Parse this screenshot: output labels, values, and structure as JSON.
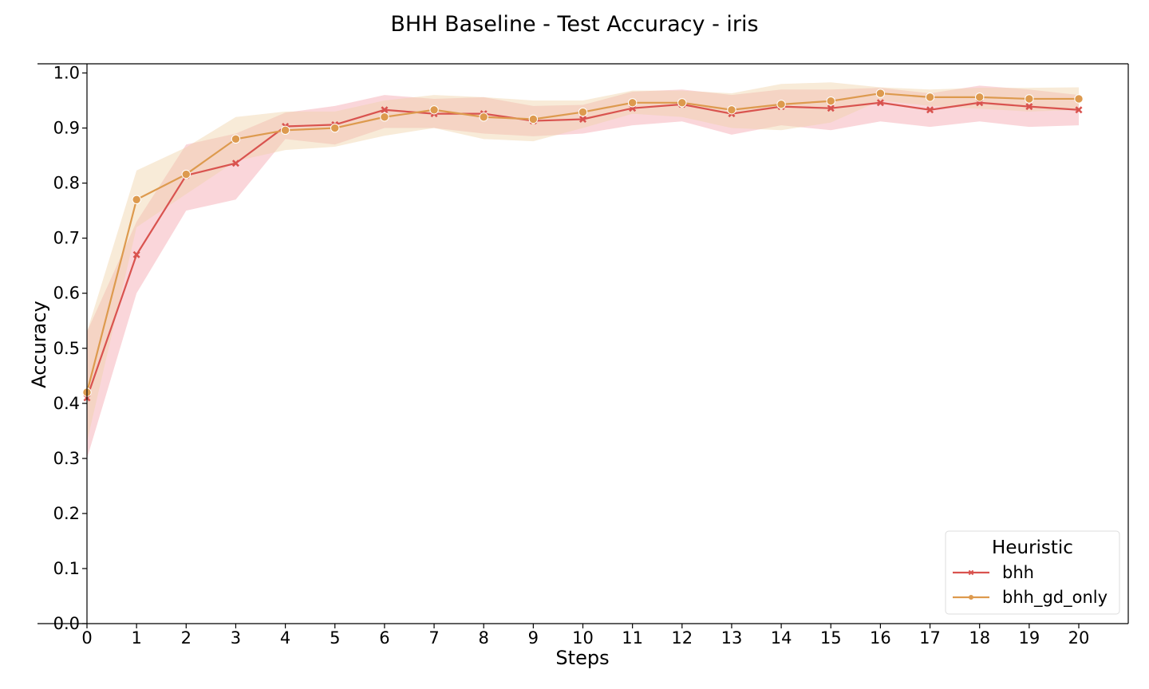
{
  "chart_data": {
    "type": "line",
    "title": "BHH Baseline - Test Accuracy - iris",
    "xlabel": "Steps",
    "ylabel": "Accuracy",
    "xlim": [
      0,
      21
    ],
    "ylim": [
      0,
      1
    ],
    "x": [
      0,
      1,
      2,
      3,
      4,
      5,
      6,
      7,
      8,
      9,
      10,
      11,
      12,
      13,
      14,
      15,
      16,
      17,
      18,
      19,
      20
    ],
    "xticks": [
      "0",
      "1",
      "2",
      "3",
      "4",
      "5",
      "6",
      "7",
      "8",
      "9",
      "10",
      "11",
      "12",
      "13",
      "14",
      "15",
      "16",
      "17",
      "18",
      "19",
      "20"
    ],
    "yticks": [
      "0.0",
      "0.1",
      "0.2",
      "0.3",
      "0.4",
      "0.5",
      "0.6",
      "0.7",
      "0.8",
      "0.9",
      "1.0"
    ],
    "grid": false,
    "legend": {
      "title": "Heuristic",
      "placement": "bottom-right"
    },
    "series": [
      {
        "name": "bhh",
        "color": "#d9534f",
        "band_color": "#f08a96",
        "marker": "x",
        "values": [
          0.41,
          0.67,
          0.814,
          0.836,
          0.903,
          0.906,
          0.933,
          0.926,
          0.926,
          0.913,
          0.916,
          0.936,
          0.943,
          0.926,
          0.939,
          0.936,
          0.946,
          0.933,
          0.946,
          0.939,
          0.933
        ],
        "lower": [
          0.3,
          0.6,
          0.75,
          0.77,
          0.88,
          0.87,
          0.9,
          0.9,
          0.89,
          0.885,
          0.89,
          0.905,
          0.912,
          0.888,
          0.905,
          0.896,
          0.912,
          0.902,
          0.912,
          0.902,
          0.905
        ],
        "upper": [
          0.53,
          0.73,
          0.87,
          0.89,
          0.928,
          0.94,
          0.96,
          0.953,
          0.956,
          0.94,
          0.942,
          0.966,
          0.97,
          0.96,
          0.97,
          0.97,
          0.973,
          0.963,
          0.977,
          0.97,
          0.96
        ]
      },
      {
        "name": "bhh_gd_only",
        "color": "#dd9a4e",
        "band_color": "#f0d2a8",
        "marker": "o",
        "values": [
          0.42,
          0.77,
          0.816,
          0.88,
          0.896,
          0.9,
          0.92,
          0.933,
          0.92,
          0.916,
          0.929,
          0.946,
          0.946,
          0.933,
          0.943,
          0.949,
          0.963,
          0.956,
          0.956,
          0.953,
          0.953
        ],
        "lower": [
          0.33,
          0.72,
          0.78,
          0.84,
          0.86,
          0.866,
          0.886,
          0.9,
          0.88,
          0.876,
          0.9,
          0.926,
          0.92,
          0.9,
          0.896,
          0.91,
          0.95,
          0.94,
          0.935,
          0.93,
          0.933
        ],
        "upper": [
          0.53,
          0.823,
          0.865,
          0.92,
          0.93,
          0.93,
          0.95,
          0.96,
          0.956,
          0.95,
          0.95,
          0.968,
          0.968,
          0.963,
          0.98,
          0.983,
          0.974,
          0.97,
          0.973,
          0.973,
          0.974
        ]
      }
    ]
  }
}
